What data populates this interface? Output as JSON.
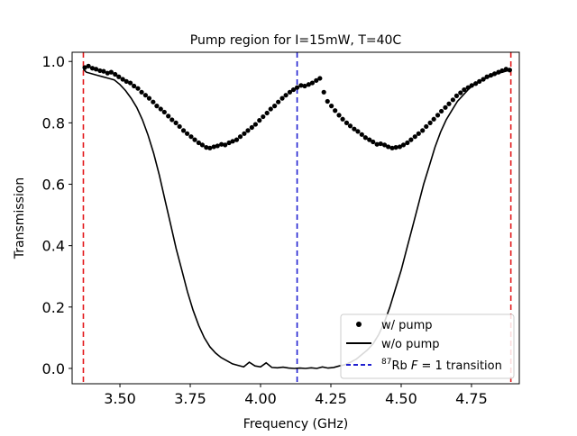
{
  "chart_data": {
    "type": "line",
    "title": "Pump region for I=15mW, T=40C",
    "xlabel": "Frequency (GHz)",
    "ylabel": "Transmission",
    "xlim": [
      3.33,
      4.92
    ],
    "ylim": [
      -0.05,
      1.03
    ],
    "xticks": [
      3.5,
      3.75,
      4.0,
      4.25,
      4.5,
      4.75
    ],
    "xtick_labels": [
      "3.50",
      "3.75",
      "4.00",
      "4.25",
      "4.50",
      "4.75"
    ],
    "yticks": [
      0.0,
      0.2,
      0.4,
      0.6,
      0.8,
      1.0
    ],
    "ytick_labels": [
      "0.0",
      "0.2",
      "0.4",
      "0.6",
      "0.8",
      "1.0"
    ],
    "grid": false,
    "legend_position": "lower-right",
    "vlines": [
      {
        "x": 3.37,
        "color": "#e31a1c",
        "style": "dashed"
      },
      {
        "x": 4.13,
        "color": "#1f1fd0",
        "style": "dashed"
      },
      {
        "x": 4.89,
        "color": "#e31a1c",
        "style": "dashed"
      }
    ],
    "series": [
      {
        "name": "w/ pump",
        "kind": "scatter",
        "color": "#000000",
        "x": [
          3.375,
          3.388,
          3.402,
          3.415,
          3.429,
          3.442,
          3.456,
          3.469,
          3.483,
          3.496,
          3.51,
          3.523,
          3.537,
          3.55,
          3.564,
          3.577,
          3.591,
          3.604,
          3.618,
          3.631,
          3.645,
          3.658,
          3.672,
          3.685,
          3.699,
          3.712,
          3.726,
          3.739,
          3.753,
          3.766,
          3.78,
          3.793,
          3.807,
          3.82,
          3.834,
          3.847,
          3.861,
          3.874,
          3.888,
          3.901,
          3.915,
          3.928,
          3.942,
          3.955,
          3.969,
          3.982,
          3.996,
          4.009,
          4.023,
          4.036,
          4.05,
          4.063,
          4.077,
          4.09,
          4.104,
          4.117,
          4.13,
          4.144,
          4.157,
          4.171,
          4.184,
          4.198,
          4.211,
          4.225,
          4.238,
          4.252,
          4.265,
          4.279,
          4.292,
          4.306,
          4.319,
          4.333,
          4.346,
          4.36,
          4.373,
          4.387,
          4.4,
          4.414,
          4.427,
          4.441,
          4.454,
          4.468,
          4.481,
          4.495,
          4.508,
          4.522,
          4.535,
          4.549,
          4.562,
          4.576,
          4.589,
          4.603,
          4.616,
          4.63,
          4.643,
          4.657,
          4.67,
          4.684,
          4.697,
          4.711,
          4.724,
          4.738,
          4.751,
          4.765,
          4.778,
          4.792,
          4.805,
          4.819,
          4.832,
          4.846,
          4.859,
          4.873,
          4.886
        ],
        "y": [
          0.98,
          0.985,
          0.978,
          0.975,
          0.97,
          0.968,
          0.962,
          0.965,
          0.958,
          0.95,
          0.942,
          0.935,
          0.93,
          0.92,
          0.912,
          0.9,
          0.89,
          0.88,
          0.868,
          0.855,
          0.845,
          0.835,
          0.822,
          0.81,
          0.8,
          0.788,
          0.775,
          0.765,
          0.755,
          0.745,
          0.735,
          0.728,
          0.72,
          0.718,
          0.722,
          0.725,
          0.73,
          0.728,
          0.735,
          0.74,
          0.745,
          0.755,
          0.765,
          0.775,
          0.785,
          0.795,
          0.808,
          0.82,
          0.832,
          0.845,
          0.855,
          0.868,
          0.88,
          0.89,
          0.9,
          0.908,
          0.915,
          0.922,
          0.92,
          0.925,
          0.93,
          0.938,
          0.945,
          0.9,
          0.87,
          0.855,
          0.84,
          0.825,
          0.812,
          0.8,
          0.79,
          0.78,
          0.772,
          0.762,
          0.752,
          0.745,
          0.738,
          0.73,
          0.732,
          0.728,
          0.722,
          0.718,
          0.72,
          0.722,
          0.728,
          0.735,
          0.745,
          0.755,
          0.765,
          0.775,
          0.788,
          0.8,
          0.812,
          0.825,
          0.838,
          0.85,
          0.862,
          0.875,
          0.888,
          0.898,
          0.908,
          0.915,
          0.922,
          0.928,
          0.935,
          0.942,
          0.95,
          0.955,
          0.96,
          0.965,
          0.97,
          0.975,
          0.972
        ]
      },
      {
        "name": "w/o pump",
        "kind": "line",
        "color": "#000000",
        "x": [
          3.37,
          3.38,
          3.4,
          3.42,
          3.44,
          3.46,
          3.48,
          3.5,
          3.52,
          3.54,
          3.56,
          3.58,
          3.6,
          3.62,
          3.64,
          3.66,
          3.68,
          3.7,
          3.72,
          3.74,
          3.76,
          3.78,
          3.8,
          3.82,
          3.84,
          3.86,
          3.88,
          3.9,
          3.92,
          3.94,
          3.96,
          3.98,
          4.0,
          4.02,
          4.04,
          4.06,
          4.08,
          4.1,
          4.12,
          4.14,
          4.16,
          4.18,
          4.2,
          4.22,
          4.24,
          4.26,
          4.28,
          4.3,
          4.32,
          4.34,
          4.36,
          4.38,
          4.4,
          4.42,
          4.44,
          4.46,
          4.48,
          4.5,
          4.52,
          4.54,
          4.56,
          4.58,
          4.6,
          4.62,
          4.64,
          4.66,
          4.68,
          4.7,
          4.72,
          4.74,
          4.76,
          4.78,
          4.8,
          4.82,
          4.84,
          4.86,
          4.88,
          4.89
        ],
        "y": [
          0.975,
          0.965,
          0.96,
          0.955,
          0.95,
          0.945,
          0.94,
          0.925,
          0.905,
          0.88,
          0.85,
          0.81,
          0.76,
          0.7,
          0.63,
          0.55,
          0.47,
          0.39,
          0.32,
          0.25,
          0.19,
          0.14,
          0.1,
          0.07,
          0.05,
          0.035,
          0.025,
          0.015,
          0.01,
          0.005,
          0.02,
          0.008,
          0.005,
          0.018,
          0.003,
          0.002,
          0.004,
          0.001,
          0.0,
          0.001,
          0.0,
          0.002,
          0.0,
          0.005,
          0.001,
          0.003,
          0.008,
          0.012,
          0.02,
          0.03,
          0.045,
          0.06,
          0.08,
          0.11,
          0.15,
          0.2,
          0.26,
          0.32,
          0.39,
          0.46,
          0.53,
          0.6,
          0.66,
          0.72,
          0.77,
          0.81,
          0.84,
          0.87,
          0.89,
          0.91,
          0.925,
          0.935,
          0.945,
          0.952,
          0.96,
          0.965,
          0.97,
          0.975
        ]
      },
      {
        "name": "87Rb F = 1 transition",
        "kind": "vline",
        "color": "#1f1fd0"
      }
    ]
  },
  "legend": {
    "entries": [
      {
        "label": "w/ pump"
      },
      {
        "label": "w/o pump"
      },
      {
        "label_sup": "87",
        "label_a": "Rb ",
        "label_var": "F",
        "label_b": " = 1 transition"
      }
    ]
  }
}
